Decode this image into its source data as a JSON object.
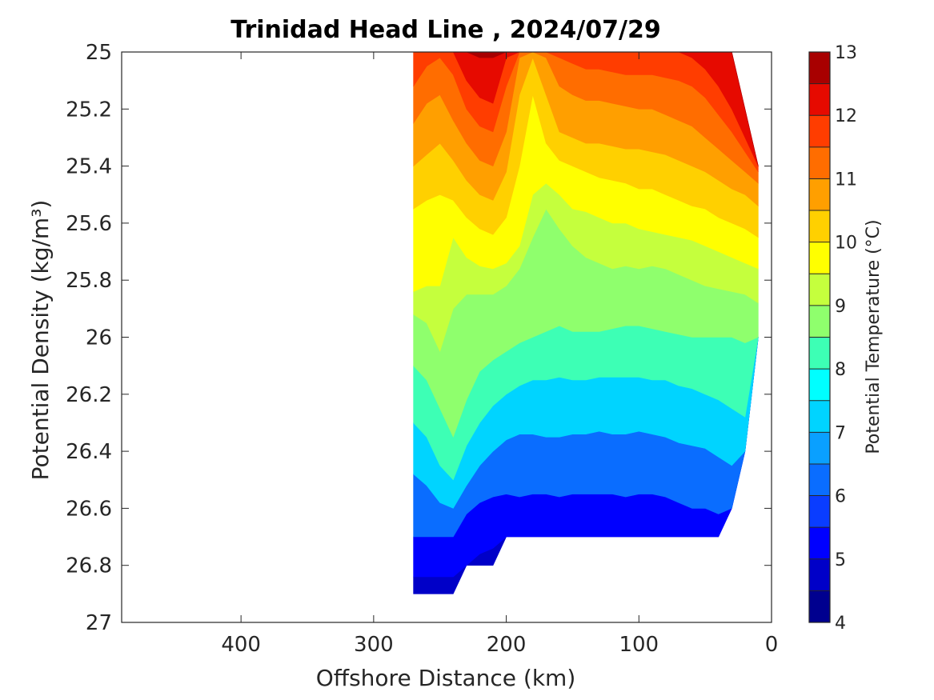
{
  "chart_data": {
    "type": "contour",
    "title": "Trinidad Head Line , 2024/07/29",
    "xlabel": "Offshore Distance (km)",
    "ylabel": "Potential Density (kg/m³)",
    "xlim": [
      490,
      0
    ],
    "ylim": [
      25,
      27
    ],
    "y_reversed": true,
    "xticks": [
      400,
      300,
      200,
      100,
      0
    ],
    "yticks": [
      "25",
      "25.2",
      "25.4",
      "25.6",
      "25.8",
      "26",
      "26.2",
      "26.4",
      "26.6",
      "26.8",
      "27"
    ],
    "colorbar": {
      "label": "Potential Temperature (°C)",
      "range": [
        4,
        13
      ],
      "ticks": [
        4,
        5,
        6,
        7,
        8,
        9,
        10,
        11,
        12,
        13
      ],
      "levels": [
        4,
        4.5,
        5,
        5.5,
        6,
        6.5,
        7,
        7.5,
        8,
        8.5,
        9,
        9.5,
        10,
        10.5,
        11,
        11.5,
        12,
        12.5,
        13
      ],
      "colors": [
        "#00008f",
        "#0000c8",
        "#0000ff",
        "#0a3dff",
        "#0a6dff",
        "#0aa0ff",
        "#00d4ff",
        "#00ffff",
        "#3dffb5",
        "#8fff6d",
        "#c5ff3d",
        "#ffff00",
        "#ffd000",
        "#ff9f00",
        "#ff6d00",
        "#ff3d00",
        "#e60a00",
        "#a80000"
      ]
    },
    "section": {
      "x": [
        270,
        260,
        250,
        240,
        230,
        220,
        210,
        200,
        190,
        180,
        170,
        160,
        150,
        140,
        130,
        120,
        110,
        100,
        90,
        80,
        70,
        60,
        50,
        40,
        30,
        20,
        10
      ],
      "bottom_density": [
        26.9,
        26.9,
        26.9,
        26.9,
        26.8,
        26.8,
        26.8,
        26.7,
        26.7,
        26.7,
        26.7,
        26.7,
        26.7,
        26.7,
        26.7,
        26.7,
        26.7,
        26.7,
        26.7,
        26.7,
        26.7,
        26.7,
        26.7,
        26.7,
        26.6,
        26.4,
        26.0
      ],
      "top_density": [
        25,
        25,
        25,
        25,
        25,
        25,
        25,
        25,
        25,
        25,
        25,
        25,
        25,
        25,
        25,
        25,
        25,
        25,
        25,
        25,
        25,
        25,
        25,
        25,
        25,
        25.2,
        25.4
      ],
      "isotherms": [
        {
          "level": 5,
          "density": [
            26.84,
            26.84,
            26.84,
            26.84,
            26.8,
            26.76,
            26.74,
            26.7,
            26.7,
            26.7,
            26.7,
            26.7,
            26.7,
            26.7,
            26.7,
            26.7,
            26.7,
            26.7,
            26.7,
            26.7,
            26.7,
            26.7,
            26.7,
            26.7,
            26.6,
            26.4,
            26.0
          ]
        },
        {
          "level": 6,
          "density": [
            26.7,
            26.7,
            26.7,
            26.7,
            26.62,
            26.58,
            26.56,
            26.55,
            26.56,
            26.55,
            26.55,
            26.56,
            26.55,
            26.55,
            26.55,
            26.55,
            26.56,
            26.55,
            26.55,
            26.56,
            26.58,
            26.6,
            26.6,
            26.62,
            26.6,
            26.4,
            26.0
          ]
        },
        {
          "level": 7,
          "density": [
            26.48,
            26.52,
            26.58,
            26.6,
            26.52,
            26.45,
            26.4,
            26.36,
            26.34,
            26.34,
            26.35,
            26.35,
            26.34,
            26.34,
            26.33,
            26.34,
            26.34,
            26.33,
            26.34,
            26.35,
            26.37,
            26.38,
            26.39,
            26.42,
            26.45,
            26.4,
            26.0
          ]
        },
        {
          "level": 8,
          "density": [
            26.3,
            26.35,
            26.45,
            26.5,
            26.38,
            26.3,
            26.24,
            26.2,
            26.17,
            26.15,
            26.15,
            26.14,
            26.15,
            26.15,
            26.14,
            26.14,
            26.14,
            26.14,
            26.15,
            26.15,
            26.17,
            26.18,
            26.2,
            26.22,
            26.25,
            26.28,
            26.0
          ]
        },
        {
          "level": 8.5,
          "density": [
            26.1,
            26.15,
            26.25,
            26.35,
            26.22,
            26.12,
            26.08,
            26.05,
            26.02,
            26.0,
            25.98,
            25.96,
            25.98,
            25.98,
            25.98,
            25.97,
            25.96,
            25.96,
            25.97,
            25.98,
            25.99,
            26.0,
            26.0,
            26.0,
            26.0,
            26.02,
            26.0
          ]
        },
        {
          "level": 9,
          "density": [
            25.92,
            25.95,
            26.05,
            25.9,
            25.85,
            25.85,
            25.85,
            25.82,
            25.76,
            25.65,
            25.55,
            25.62,
            25.68,
            25.72,
            25.74,
            25.76,
            25.75,
            25.76,
            25.75,
            25.76,
            25.78,
            25.8,
            25.82,
            25.83,
            25.84,
            25.85,
            25.88
          ]
        },
        {
          "level": 9.5,
          "density": [
            25.84,
            25.82,
            25.82,
            25.65,
            25.72,
            25.75,
            25.76,
            25.74,
            25.68,
            25.5,
            25.46,
            25.5,
            25.55,
            25.56,
            25.58,
            25.6,
            25.6,
            25.62,
            25.63,
            25.64,
            25.65,
            25.66,
            25.68,
            25.7,
            25.72,
            25.74,
            25.76
          ]
        },
        {
          "level": 10,
          "density": [
            25.55,
            25.52,
            25.5,
            25.52,
            25.58,
            25.62,
            25.64,
            25.58,
            25.4,
            25.15,
            25.32,
            25.38,
            25.4,
            25.42,
            25.44,
            25.45,
            25.46,
            25.48,
            25.48,
            25.5,
            25.52,
            25.54,
            25.55,
            25.58,
            25.6,
            25.62,
            25.65
          ]
        },
        {
          "level": 10.5,
          "density": [
            25.4,
            25.36,
            25.32,
            25.38,
            25.45,
            25.5,
            25.52,
            25.42,
            25.15,
            25.02,
            25.15,
            25.28,
            25.3,
            25.32,
            25.32,
            25.33,
            25.34,
            25.34,
            25.35,
            25.36,
            25.38,
            25.4,
            25.42,
            25.45,
            25.48,
            25.5,
            25.54
          ]
        },
        {
          "level": 11,
          "density": [
            25.25,
            25.18,
            25.15,
            25.24,
            25.32,
            25.38,
            25.4,
            25.28,
            25.02,
            25.0,
            25.02,
            25.12,
            25.15,
            25.17,
            25.17,
            25.18,
            25.19,
            25.2,
            25.2,
            25.22,
            25.24,
            25.26,
            25.3,
            25.34,
            25.38,
            25.42,
            25.46
          ]
        },
        {
          "level": 11.5,
          "density": [
            25.12,
            25.05,
            25.02,
            25.08,
            25.2,
            25.26,
            25.28,
            25.12,
            25.0,
            25.0,
            25.0,
            25.02,
            25.04,
            25.06,
            25.06,
            25.07,
            25.08,
            25.08,
            25.08,
            25.09,
            25.1,
            25.12,
            25.16,
            25.22,
            25.28,
            25.35,
            25.42
          ]
        },
        {
          "level": 12,
          "density": [
            25.0,
            25.0,
            25.0,
            25.0,
            25.1,
            25.16,
            25.18,
            25.02,
            25.0,
            25.0,
            25.0,
            25.0,
            25.0,
            25.0,
            25.0,
            25.0,
            25.0,
            25.0,
            25.0,
            25.0,
            25.0,
            25.02,
            25.06,
            25.12,
            25.2,
            25.3,
            25.4
          ]
        },
        {
          "level": 12.5,
          "density": [
            25.0,
            25.0,
            25.0,
            25.0,
            25.0,
            25.02,
            25.02,
            25.0,
            25.0,
            25.0,
            25.0,
            25.0,
            25.0,
            25.0,
            25.0,
            25.0,
            25.0,
            25.0,
            25.0,
            25.0,
            25.0,
            25.0,
            25.0,
            25.0,
            25.0,
            25.0,
            25.0
          ]
        }
      ]
    }
  }
}
